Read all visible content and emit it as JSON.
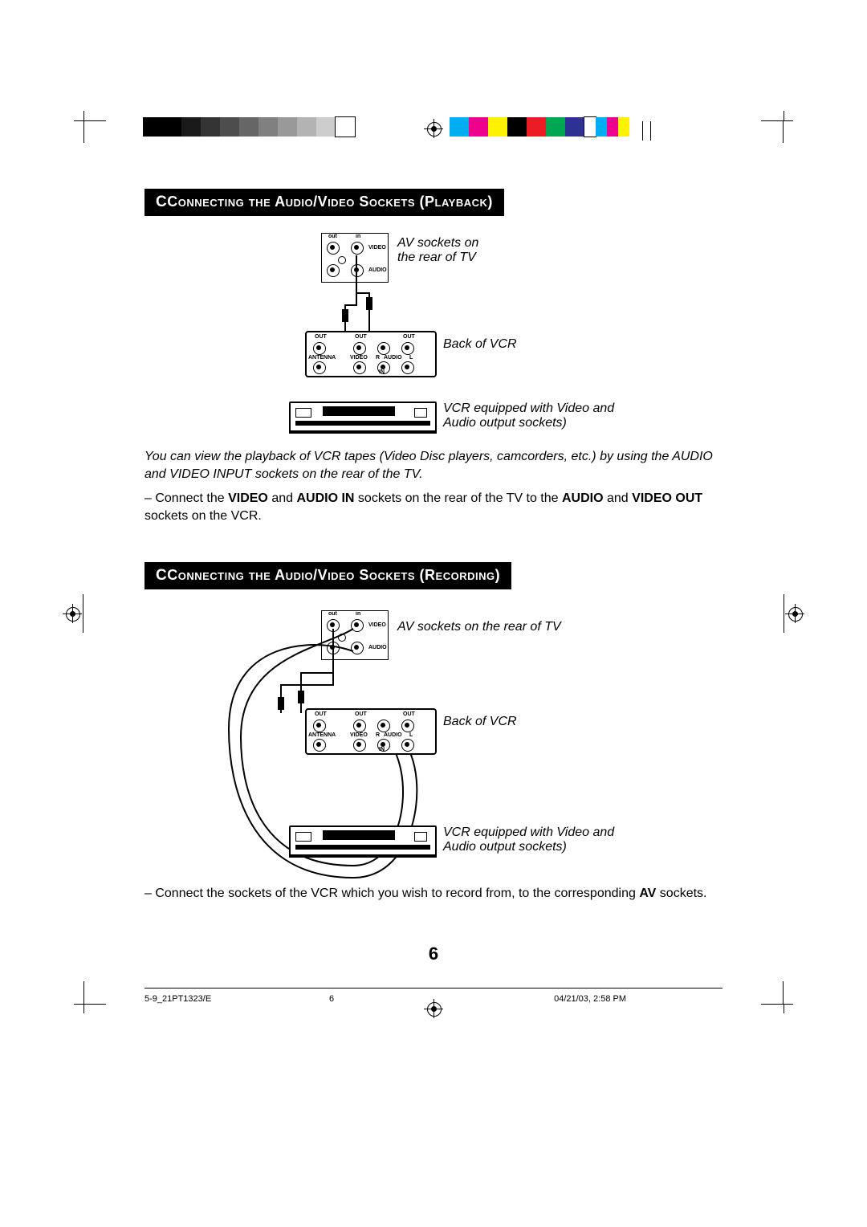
{
  "page": {
    "number": "6",
    "footer_left": "5-9_21PT1323/E",
    "footer_mid": "6",
    "footer_right": "04/21/03, 2:58 PM"
  },
  "colorbar": {
    "grayscale": [
      "#000000",
      "#000000",
      "#1a1a1a",
      "#333333",
      "#4d4d4d",
      "#666666",
      "#808080",
      "#999999",
      "#b3b3b3",
      "#cccccc",
      "#ffffff"
    ],
    "rainbow": [
      "#00aeef",
      "#ec008c",
      "#fff200",
      "#000000",
      "#ed1c24",
      "#00a651",
      "#2e3192",
      "#ffffff",
      "#00aeef",
      "#ec008c",
      "#fff200"
    ],
    "swatch_w": 24,
    "swatch_h": 24
  },
  "sections": {
    "playback": {
      "title": "Connecting the Audio/Video  Sockets (Playback)",
      "labels": {
        "tv": "AV sockets on\nthe rear of TV",
        "vcr_back": "Back of VCR",
        "vcr_front": "VCR equipped with Video and\nAudio output sockets)"
      },
      "tv_panel": {
        "out": "out",
        "in": "in",
        "video": "VIDEO",
        "audio": "AUDIO"
      },
      "vcr_panel": {
        "out": "OUT",
        "in": "IN",
        "antenna": "ANTENNA",
        "video": "VIDEO",
        "audio": "AUDIO",
        "r": "R",
        "l": "L"
      },
      "caption_italic": "You can view the playback of VCR tapes (Video Disc players, camcorders, etc.) by using the AUDIO and VIDEO INPUT sockets on the rear of the TV.",
      "bullet_parts": {
        "p1": "– Connect the ",
        "b1": "VIDEO",
        "p2": " and ",
        "b2": "AUDIO IN",
        "p3": " sockets on the rear of the TV to the ",
        "b3": "AUDIO",
        "p4": " and ",
        "b4": "VIDEO OUT",
        "p5": " sockets on the VCR."
      }
    },
    "recording": {
      "title": "Connecting the Audio/Video  Sockets (Recording)",
      "labels": {
        "tv": "AV sockets on the rear of TV",
        "vcr_back": "Back of VCR",
        "vcr_front": "VCR equipped with Video and\nAudio output sockets)"
      },
      "tv_panel": {
        "out": "out",
        "in": "in",
        "video": "VIDEO",
        "audio": "AUDIO"
      },
      "vcr_panel": {
        "out": "OUT",
        "in": "IN",
        "antenna": "ANTENNA",
        "video": "VIDEO",
        "audio": "AUDIO",
        "r": "R",
        "l": "L"
      },
      "bullet_parts": {
        "p1": "– Connect the sockets of the VCR which you wish to record from, to the corresponding ",
        "b1": "AV",
        "p2": " sockets."
      }
    }
  }
}
